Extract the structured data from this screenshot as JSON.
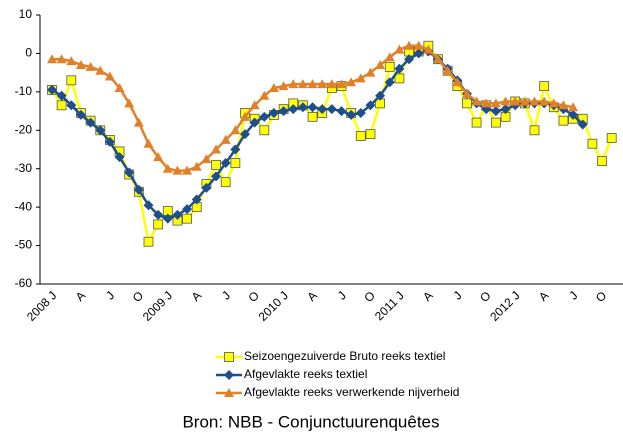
{
  "chart_data": {
    "type": "line",
    "categories": [
      "2008 J",
      null,
      null,
      "A",
      null,
      null,
      "J",
      null,
      null,
      "O",
      null,
      null,
      "2009 J",
      null,
      null,
      "A",
      null,
      null,
      "J",
      null,
      null,
      "O",
      null,
      null,
      "2010 J",
      null,
      null,
      "A",
      null,
      null,
      "J",
      null,
      null,
      "O",
      null,
      null,
      "2011 J",
      null,
      null,
      "A",
      null,
      null,
      "J",
      null,
      null,
      "O",
      null,
      null,
      "2012 J",
      null,
      null,
      "A",
      null,
      null,
      "J",
      null,
      null,
      "O",
      null
    ],
    "series": [
      {
        "name": "Seizoengezuiverde Bruto reeks textiel",
        "color": "#ffff00",
        "marker": "square",
        "values": [
          -9.5,
          -13.5,
          -7,
          -15.5,
          -17.5,
          -20,
          -22.5,
          -25.5,
          -31.5,
          -36,
          -49,
          -44.5,
          -41,
          -43.5,
          -43,
          -40,
          -34,
          -29,
          -33.5,
          -28.5,
          -15.5,
          -17,
          -20,
          -16,
          -14.5,
          -13,
          -13.5,
          -16.5,
          -15.5,
          -9,
          -8.5,
          -15.5,
          -21.5,
          -21,
          -13,
          -3.5,
          -6.5,
          0.5,
          0.5,
          2,
          -1.5,
          -4.5,
          -8.5,
          -13,
          -18,
          -13.5,
          -18,
          -16.5,
          -12.5,
          -13,
          -20,
          -8.5,
          -14,
          -17.5,
          -17,
          -17,
          -23.5,
          -28,
          -22
        ]
      },
      {
        "name": "Afgevlakte reeks textiel",
        "color": "#1f4e8c",
        "marker": "diamond",
        "values": [
          -9.5,
          -11,
          -13.5,
          -16,
          -18,
          -20,
          -23,
          -27,
          -31,
          -35.5,
          -39.5,
          -42,
          -43,
          -42,
          -40.5,
          -38,
          -35,
          -32,
          -28.5,
          -25,
          -21,
          -18,
          -16.5,
          -15.5,
          -15,
          -14.5,
          -14,
          -14,
          -14.5,
          -14.5,
          -15,
          -16,
          -15.5,
          -13.5,
          -11,
          -7.5,
          -4,
          -1.5,
          0,
          0.5,
          -1.5,
          -4,
          -7,
          -10.5,
          -13,
          -14.5,
          -15,
          -14.5,
          -13.5,
          -13,
          -13,
          -13,
          -13.5,
          -14.5,
          -16,
          -18.5,
          null,
          null,
          null
        ]
      },
      {
        "name": "Afgevlakte reeks verwerkende nijverheid",
        "color": "#e0812a",
        "marker": "triangle",
        "values": [
          -1.5,
          -1.5,
          -2,
          -3,
          -3.5,
          -4.5,
          -6,
          -9,
          -13,
          -18,
          -23.5,
          -27,
          -30,
          -30.5,
          -30.5,
          -29.5,
          -27.5,
          -25,
          -22.5,
          -20,
          -16.5,
          -13.5,
          -11,
          -9,
          -8.5,
          -8,
          -8,
          -8,
          -8,
          -8,
          -8,
          -7.5,
          -6.5,
          -5,
          -3,
          -1,
          1,
          2,
          2,
          1,
          -1.5,
          -4.5,
          -7.5,
          -10.5,
          -12.5,
          -13,
          -13,
          -12.5,
          -12.5,
          -12.5,
          -12.5,
          -12.5,
          -13,
          -13.5,
          -14,
          null,
          null,
          null,
          null
        ]
      }
    ],
    "ylim": [
      -60,
      10
    ],
    "yticks": [
      10,
      0,
      -10,
      -20,
      -30,
      -40,
      -50,
      -60
    ],
    "source": "Bron: NBB - Conjunctuurenquêtes"
  }
}
